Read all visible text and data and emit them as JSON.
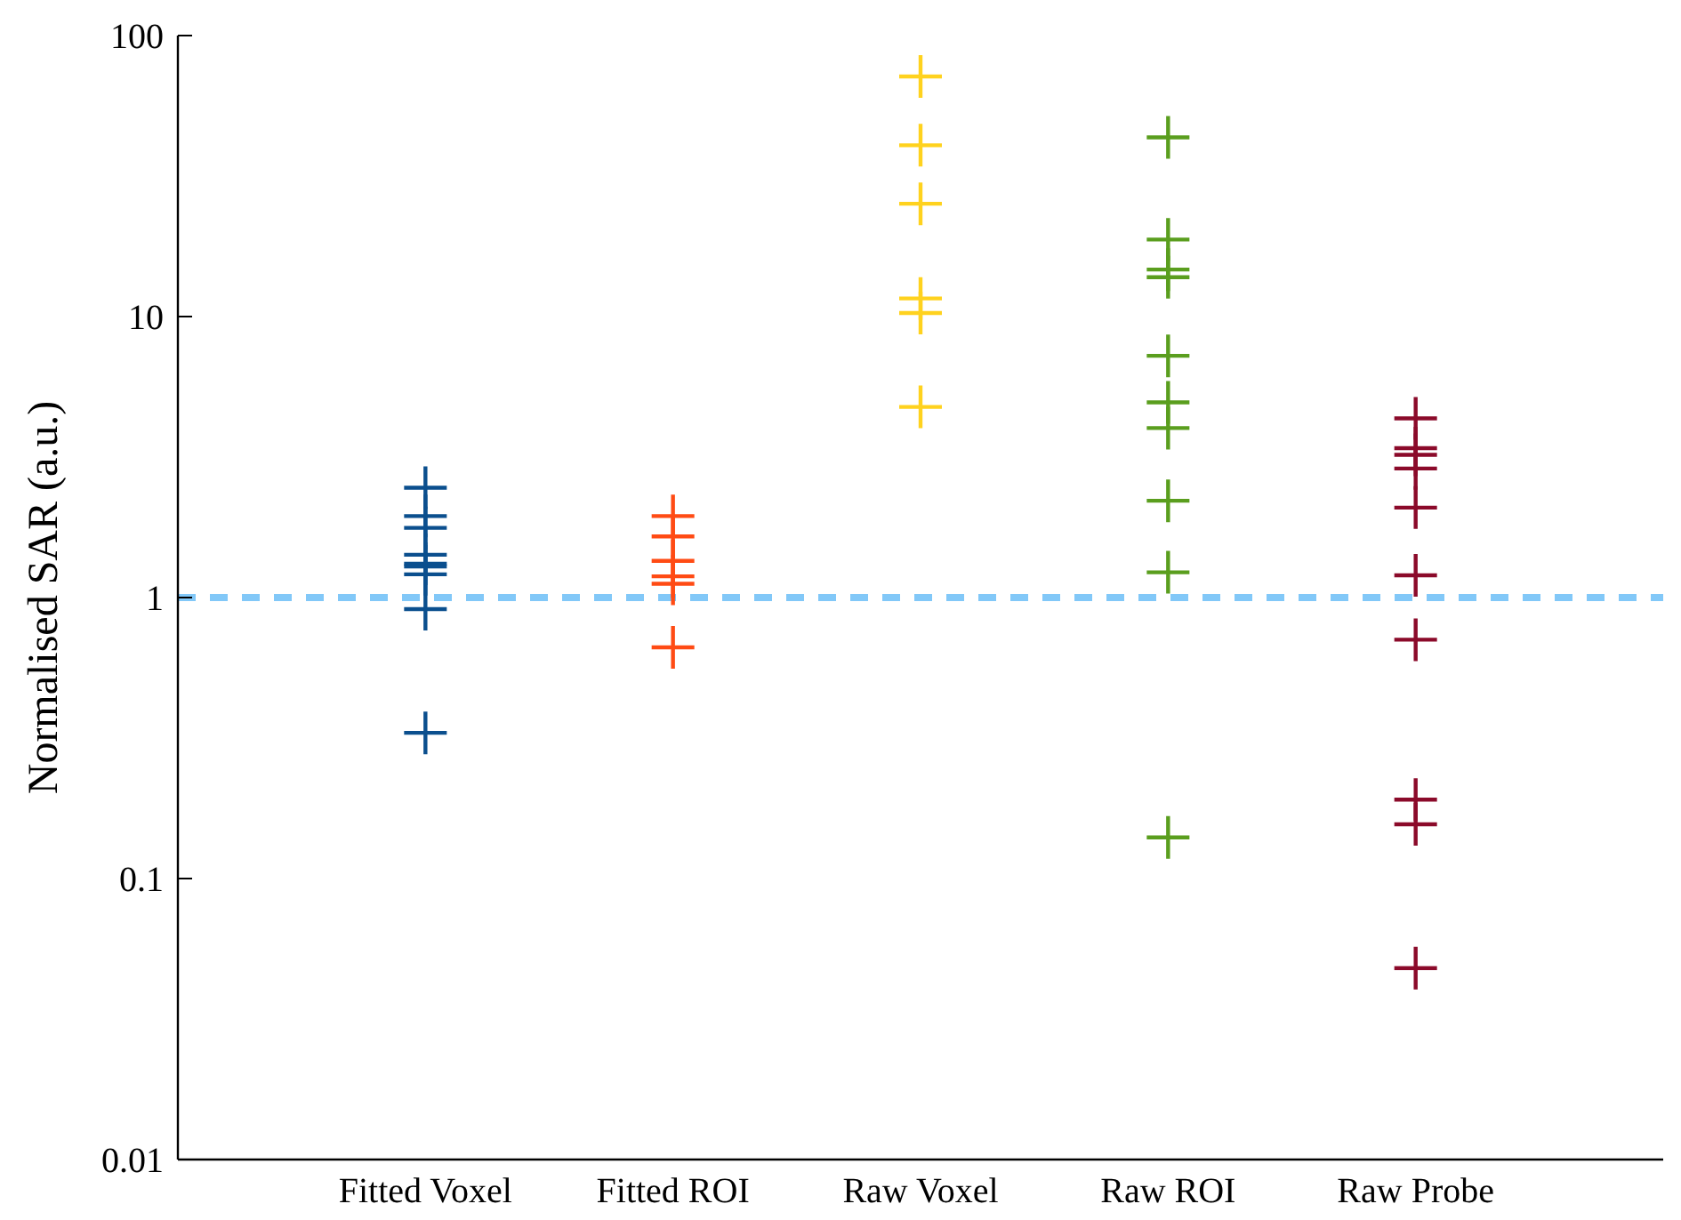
{
  "chart_data": {
    "type": "scatter",
    "ylabel": "Normalised SAR (a.u.)",
    "categories": [
      "Fitted Voxel",
      "Fitted ROI",
      "Raw Voxel",
      "Raw ROI",
      "Raw Probe"
    ],
    "log": "y",
    "ylim": [
      0.01,
      100
    ],
    "yticks": [
      0.01,
      0.1,
      1,
      10,
      100
    ],
    "marker": "cross",
    "grid": false,
    "series": [
      {
        "color": "#0b4f8e",
        "x": [
          "Fitted Voxel",
          "Fitted Voxel",
          "Fitted Voxel",
          "Fitted Voxel",
          "Fitted Voxel",
          "Fitted Voxel",
          "Fitted Voxel",
          "Fitted Voxel",
          "Fitted Voxel"
        ],
        "values": [
          2.46,
          1.95,
          1.77,
          1.42,
          1.32,
          1.29,
          1.21,
          0.91,
          0.33
        ]
      },
      {
        "color": "#ff4b14",
        "x": [
          "Fitted ROI",
          "Fitted ROI",
          "Fitted ROI",
          "Fitted ROI",
          "Fitted ROI",
          "Fitted ROI"
        ],
        "values": [
          1.95,
          1.65,
          1.35,
          1.19,
          1.12,
          0.665
        ]
      },
      {
        "color": "#ffd21e",
        "x": [
          "Raw Voxel",
          "Raw Voxel",
          "Raw Voxel",
          "Raw Voxel",
          "Raw Voxel",
          "Raw Voxel"
        ],
        "values": [
          71.5,
          40.7,
          25.2,
          11.6,
          10.3,
          4.77
        ]
      },
      {
        "color": "#5a9e1e",
        "x": [
          "Raw ROI",
          "Raw ROI",
          "Raw ROI",
          "Raw ROI",
          "Raw ROI",
          "Raw ROI",
          "Raw ROI",
          "Raw ROI",
          "Raw ROI",
          "Raw ROI"
        ],
        "values": [
          43.4,
          18.8,
          14.7,
          13.8,
          7.25,
          4.95,
          4.01,
          2.21,
          1.23,
          0.14
        ]
      },
      {
        "color": "#8b0a2a",
        "x": [
          "Raw Probe",
          "Raw Probe",
          "Raw Probe",
          "Raw Probe",
          "Raw Probe",
          "Raw Probe",
          "Raw Probe",
          "Raw Probe",
          "Raw Probe",
          "Raw Probe"
        ],
        "values": [
          4.34,
          3.4,
          3.22,
          2.88,
          2.09,
          1.2,
          0.708,
          0.191,
          0.156,
          0.048
        ]
      }
    ],
    "ref_lines": [
      {
        "axis": "y",
        "value": 1,
        "color": "#82c8f8",
        "line_style": "dashed"
      }
    ]
  }
}
